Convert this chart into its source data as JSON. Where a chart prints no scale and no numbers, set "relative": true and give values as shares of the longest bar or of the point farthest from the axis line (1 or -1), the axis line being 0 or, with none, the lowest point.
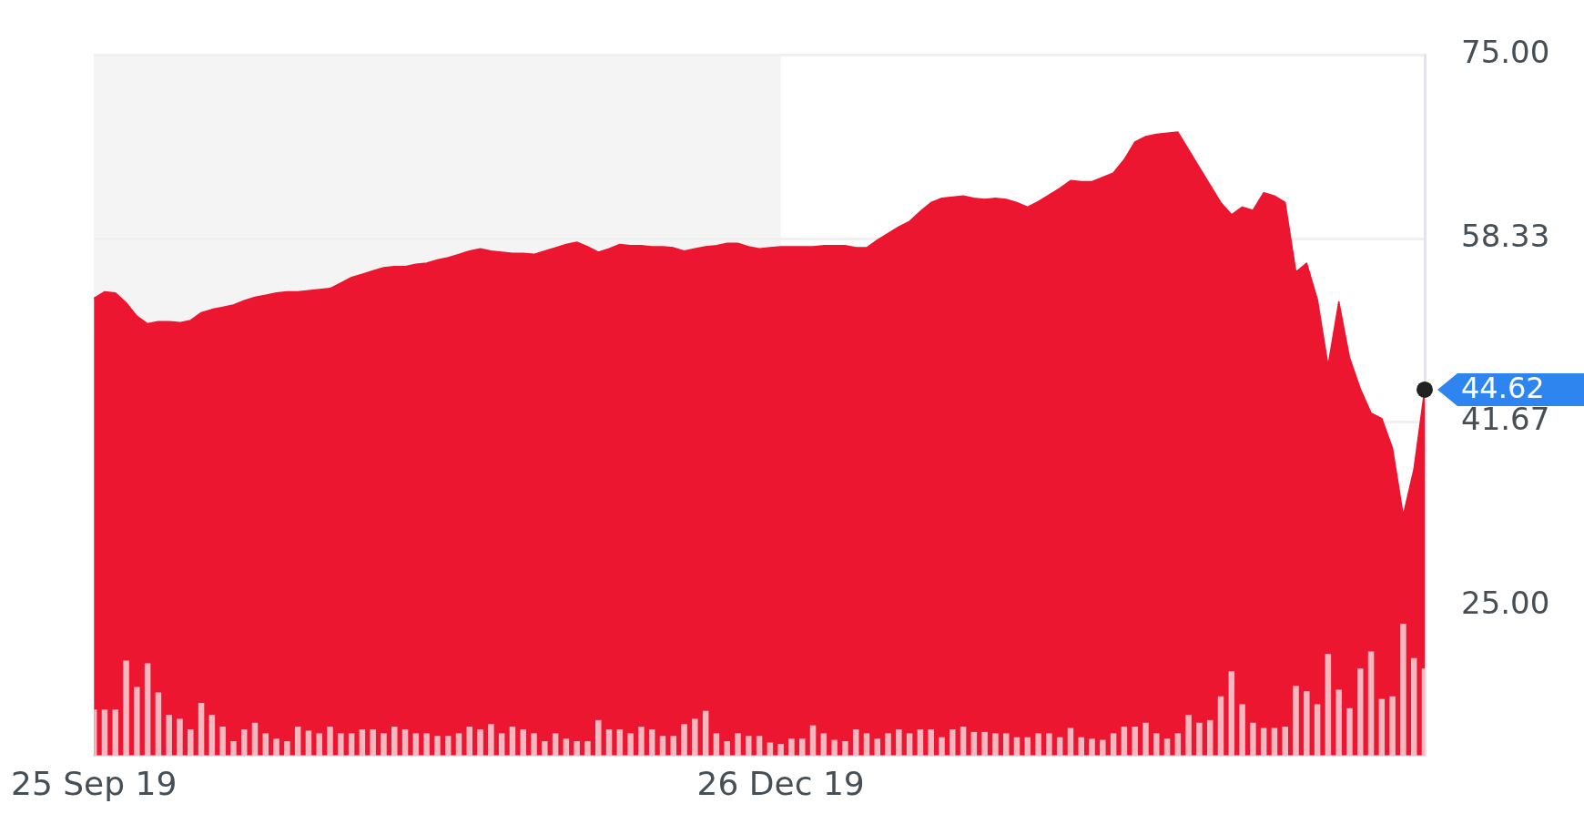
{
  "chart_data": [
    {
      "type": "area",
      "color": "#ec1630",
      "categories": [
        "25 Sep 19",
        null,
        null,
        null,
        null,
        null,
        null,
        null,
        null,
        null,
        null,
        null,
        null,
        null,
        null,
        null,
        null,
        null,
        null,
        null,
        null,
        null,
        null,
        null,
        null,
        null,
        null,
        null,
        null,
        null,
        null,
        null,
        null,
        null,
        null,
        null,
        null,
        null,
        null,
        null,
        null,
        null,
        null,
        null,
        null,
        null,
        null,
        null,
        null,
        null,
        null,
        null,
        null,
        null,
        null,
        null,
        null,
        null,
        null,
        null,
        null,
        null,
        null,
        null,
        "26 Dec 19",
        null,
        null,
        null,
        null,
        null,
        null,
        null,
        null,
        null,
        null,
        null,
        null,
        null,
        null,
        null,
        null,
        null,
        null,
        null,
        null,
        null,
        null,
        null,
        null,
        null,
        null,
        null,
        null,
        null,
        null,
        null,
        null,
        null,
        null,
        null,
        null,
        null,
        null,
        null,
        null,
        null,
        null,
        null,
        null,
        null,
        null,
        null,
        null,
        null,
        null,
        null,
        null,
        null,
        null,
        null,
        null,
        null,
        null,
        null,
        null
      ],
      "values": [
        52.9,
        53.5,
        53.4,
        52.5,
        51.3,
        50.6,
        50.8,
        50.8,
        50.7,
        50.9,
        51.6,
        51.9,
        52.1,
        52.3,
        52.7,
        53.0,
        53.2,
        53.4,
        53.5,
        53.5,
        53.6,
        53.7,
        53.8,
        54.3,
        54.8,
        55.1,
        55.4,
        55.7,
        55.8,
        55.8,
        56.0,
        56.1,
        56.4,
        56.6,
        56.9,
        57.2,
        57.4,
        57.2,
        57.1,
        57.0,
        57.0,
        56.9,
        57.2,
        57.5,
        57.8,
        58.0,
        57.6,
        57.1,
        57.4,
        57.8,
        57.7,
        57.7,
        57.6,
        57.6,
        57.5,
        57.2,
        57.4,
        57.6,
        57.7,
        57.9,
        57.9,
        57.6,
        57.4,
        57.5,
        57.6,
        57.6,
        57.6,
        57.6,
        57.7,
        57.7,
        57.7,
        57.5,
        57.5,
        58.2,
        58.8,
        59.4,
        59.9,
        60.8,
        61.6,
        62.0,
        62.1,
        62.2,
        62.0,
        61.9,
        62.0,
        61.9,
        61.6,
        61.2,
        61.7,
        62.3,
        62.9,
        63.6,
        63.5,
        63.5,
        63.9,
        64.3,
        65.5,
        67.1,
        67.6,
        67.8,
        67.9,
        68.0,
        66.4,
        64.8,
        63.2,
        61.6,
        60.5,
        61.2,
        60.9,
        62.5,
        62.2,
        61.6,
        55.3,
        56.1,
        52.8,
        46.8,
        52.6,
        47.5,
        44.7,
        42.5,
        42.0,
        39.3,
        33.2,
        37.4,
        44.62
      ],
      "ylim": [
        11.4,
        75
      ],
      "yticks": [
        {
          "value": 25,
          "label": "25.00"
        },
        41.67,
        58.33,
        {
          "value": 75,
          "label": "75.00"
        }
      ],
      "grid": "y",
      "bands": [
        {
          "axis": "x",
          "from": "25 Sep 19",
          "to": "26 Dec 19",
          "color": "#f4f4f4"
        }
      ],
      "annotations": [
        "44.62"
      ]
    },
    {
      "type": "bar",
      "relative": true,
      "color": "#f6b8c0",
      "categories": [
        null,
        null,
        null,
        null,
        null,
        null,
        null,
        null,
        null,
        null,
        null,
        null,
        null,
        null,
        null,
        null,
        null,
        null,
        null,
        null,
        null,
        null,
        null,
        null,
        null,
        null,
        null,
        null,
        null,
        null,
        null,
        null,
        null,
        null,
        null,
        null,
        null,
        null,
        null,
        null,
        null,
        null,
        null,
        null,
        null,
        null,
        null,
        null,
        null,
        null,
        null,
        null,
        null,
        null,
        null,
        null,
        null,
        null,
        null,
        null,
        null,
        null,
        null,
        null,
        null,
        null,
        null,
        null,
        null,
        null,
        null,
        null,
        null,
        null,
        null,
        null,
        null,
        null,
        null,
        null,
        null,
        null,
        null,
        null,
        null,
        null,
        null,
        null,
        null,
        null,
        null,
        null,
        null,
        null,
        null,
        null,
        null,
        null,
        null,
        null,
        null,
        null,
        null,
        null,
        null,
        null,
        null,
        null,
        null,
        null,
        null,
        null,
        null,
        null,
        null,
        null,
        null,
        null,
        null,
        null,
        null,
        null,
        null,
        null,
        null
      ],
      "values": [
        0.35,
        0.35,
        0.35,
        0.72,
        0.52,
        0.7,
        0.48,
        0.31,
        0.28,
        0.2,
        0.4,
        0.31,
        0.22,
        0.11,
        0.2,
        0.25,
        0.17,
        0.13,
        0.11,
        0.22,
        0.19,
        0.17,
        0.22,
        0.17,
        0.17,
        0.2,
        0.2,
        0.17,
        0.22,
        0.2,
        0.17,
        0.17,
        0.15,
        0.15,
        0.17,
        0.22,
        0.2,
        0.24,
        0.17,
        0.22,
        0.2,
        0.17,
        0.11,
        0.17,
        0.13,
        0.11,
        0.11,
        0.27,
        0.2,
        0.2,
        0.17,
        0.22,
        0.2,
        0.15,
        0.15,
        0.24,
        0.28,
        0.34,
        0.17,
        0.11,
        0.17,
        0.15,
        0.15,
        0.1,
        0.09,
        0.13,
        0.13,
        0.23,
        0.17,
        0.12,
        0.11,
        0.2,
        0.17,
        0.13,
        0.17,
        0.2,
        0.17,
        0.2,
        0.2,
        0.14,
        0.2,
        0.22,
        0.18,
        0.18,
        0.17,
        0.17,
        0.14,
        0.14,
        0.17,
        0.17,
        0.14,
        0.21,
        0.14,
        0.13,
        0.12,
        0.17,
        0.22,
        0.22,
        0.25,
        0.17,
        0.13,
        0.17,
        0.31,
        0.25,
        0.27,
        0.45,
        0.64,
        0.39,
        0.25,
        0.21,
        0.21,
        0.22,
        0.53,
        0.49,
        0.39,
        0.77,
        0.5,
        0.36,
        0.66,
        0.79,
        0.43,
        0.45,
        1.0,
        0.74,
        0.66
      ]
    }
  ]
}
